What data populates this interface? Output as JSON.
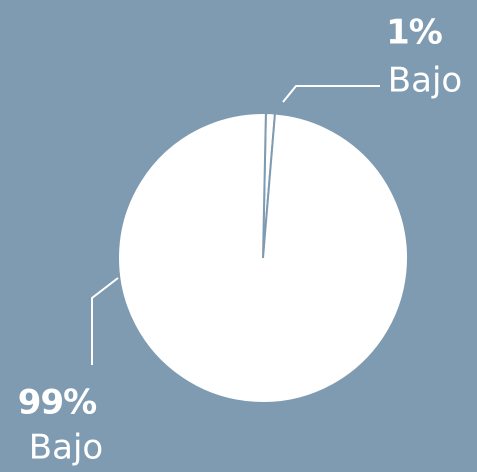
{
  "chart_data": {
    "type": "pie",
    "categories": [
      "Bajo",
      "Bajo"
    ],
    "values": [
      1,
      99
    ],
    "value_labels": [
      "1%",
      "99%"
    ],
    "colors": [
      "#ffffff",
      "#ffffff"
    ]
  }
}
